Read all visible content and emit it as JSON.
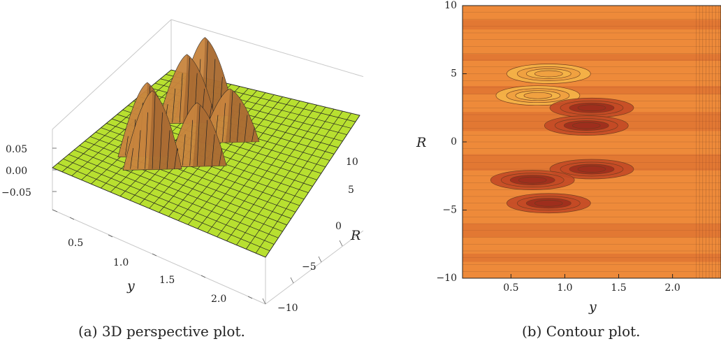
{
  "panels": {
    "a": {
      "caption": "(a) 3D perspective plot."
    },
    "b": {
      "caption": "(b) Contour plot."
    }
  },
  "chart_data": [
    {
      "type": "surface",
      "panel": "a",
      "xlabel": "y",
      "ylabel": "R",
      "zlabel": "",
      "xlim": [
        0.1,
        2.4
      ],
      "ylim": [
        -10,
        10
      ],
      "zlim": [
        -0.08,
        0.08
      ],
      "x_ticks": [
        "0.5",
        "1.0",
        "1.5",
        "2.0"
      ],
      "y_ticks": [
        "−10",
        "−5",
        "0",
        "5",
        "10"
      ],
      "z_ticks": [
        "0.05",
        "0.00",
        "−0.05"
      ],
      "colors": {
        "surface_base": "#b5e22e",
        "peak": "#c8843e",
        "peak_shadow": "#8a5328"
      },
      "peaks": [
        {
          "y": 0.85,
          "R": 5,
          "z": 0.075
        },
        {
          "y": 0.75,
          "R": 3.3,
          "z": 0.065
        },
        {
          "y": 1.3,
          "R": 2.5,
          "z": 0.05
        },
        {
          "y": 1.2,
          "R": -2,
          "z": 0.06
        },
        {
          "y": 0.7,
          "R": -3,
          "z": 0.07
        },
        {
          "y": 0.85,
          "R": -4.5,
          "z": 0.075
        }
      ]
    },
    {
      "type": "contour",
      "panel": "b",
      "xlabel": "y",
      "ylabel": "R",
      "xlim": [
        0.05,
        2.45
      ],
      "ylim": [
        -10,
        10
      ],
      "x_ticks": [
        0.5,
        1.0,
        1.5,
        2.0
      ],
      "x_tick_labels": [
        "0.5",
        "1.0",
        "1.5",
        "2.0"
      ],
      "y_ticks": [
        -10,
        -5,
        0,
        5,
        10
      ],
      "y_tick_labels": [
        "−10",
        "−5",
        "0",
        "5",
        "10"
      ],
      "colors": {
        "background": "#ee8a3a",
        "light": "#f5b548",
        "dark": "#c44a25",
        "darkest": "#9e2e1d",
        "line": "#6b3a1e"
      },
      "features": [
        {
          "y": 0.85,
          "R": 5.0,
          "kind": "peak"
        },
        {
          "y": 0.75,
          "R": 3.4,
          "kind": "peak"
        },
        {
          "y": 1.25,
          "R": 2.5,
          "kind": "trough"
        },
        {
          "y": 1.2,
          "R": 1.2,
          "kind": "trough"
        },
        {
          "y": 1.25,
          "R": -2.0,
          "kind": "trough"
        },
        {
          "y": 0.7,
          "R": -2.8,
          "kind": "trough"
        },
        {
          "y": 0.85,
          "R": -4.5,
          "kind": "trough"
        }
      ]
    }
  ]
}
